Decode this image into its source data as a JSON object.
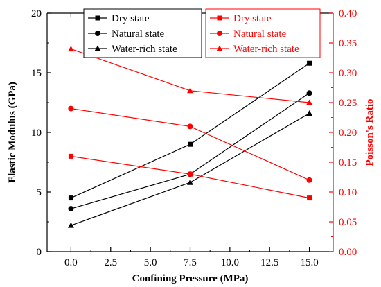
{
  "chart_data": {
    "type": "line",
    "x": [
      0,
      7.5,
      15
    ],
    "xlabel": "Confining Pressure (MPa)",
    "xlim": [
      -1.5,
      16.5
    ],
    "xticks": [
      "0.0",
      "2.5",
      "5.0",
      "7.5",
      "10.0",
      "12.5",
      "15.0"
    ],
    "xtick_values": [
      0,
      2.5,
      5,
      7.5,
      10,
      12.5,
      15
    ],
    "y_left": {
      "label": "Elastic Modulus (GPa)",
      "lim": [
        0,
        20
      ],
      "ticks": [
        "0",
        "5",
        "10",
        "15",
        "20"
      ],
      "tick_values": [
        0,
        5,
        10,
        15,
        20
      ],
      "color": "#000000"
    },
    "y_right": {
      "label": "Poisson's Ratio",
      "lim": [
        0,
        0.4
      ],
      "ticks": [
        "0.00",
        "0.05",
        "0.10",
        "0.15",
        "0.20",
        "0.25",
        "0.30",
        "0.35",
        "0.40"
      ],
      "tick_values": [
        0,
        0.05,
        0.1,
        0.15,
        0.2,
        0.25,
        0.3,
        0.35,
        0.4
      ],
      "color": "#ff0000"
    },
    "series": [
      {
        "name": "Dry state",
        "axis": "left",
        "marker": "square",
        "color": "#000000",
        "values": [
          4.5,
          9.0,
          15.8
        ]
      },
      {
        "name": "Natural state",
        "axis": "left",
        "marker": "circle",
        "color": "#000000",
        "values": [
          3.6,
          6.5,
          13.3
        ]
      },
      {
        "name": "Water-rich state",
        "axis": "left",
        "marker": "triangle",
        "color": "#000000",
        "values": [
          2.2,
          5.8,
          11.6
        ]
      },
      {
        "name": "Dry state",
        "axis": "right",
        "marker": "square",
        "color": "#ff0000",
        "values": [
          0.16,
          0.13,
          0.09
        ]
      },
      {
        "name": "Natural state",
        "axis": "right",
        "marker": "circle",
        "color": "#ff0000",
        "values": [
          0.24,
          0.21,
          0.12
        ]
      },
      {
        "name": "Water-rich state",
        "axis": "right",
        "marker": "triangle",
        "color": "#ff0000",
        "values": [
          0.34,
          0.27,
          0.25
        ]
      }
    ],
    "legends": [
      {
        "placement": "top-left",
        "color": "#000000",
        "entries": [
          "Dry state",
          "Natural state",
          "Water-rich state"
        ]
      },
      {
        "placement": "top-right",
        "color": "#ff0000",
        "entries": [
          "Dry state",
          "Natural state",
          "Water-rich state"
        ]
      }
    ],
    "grid": false
  }
}
